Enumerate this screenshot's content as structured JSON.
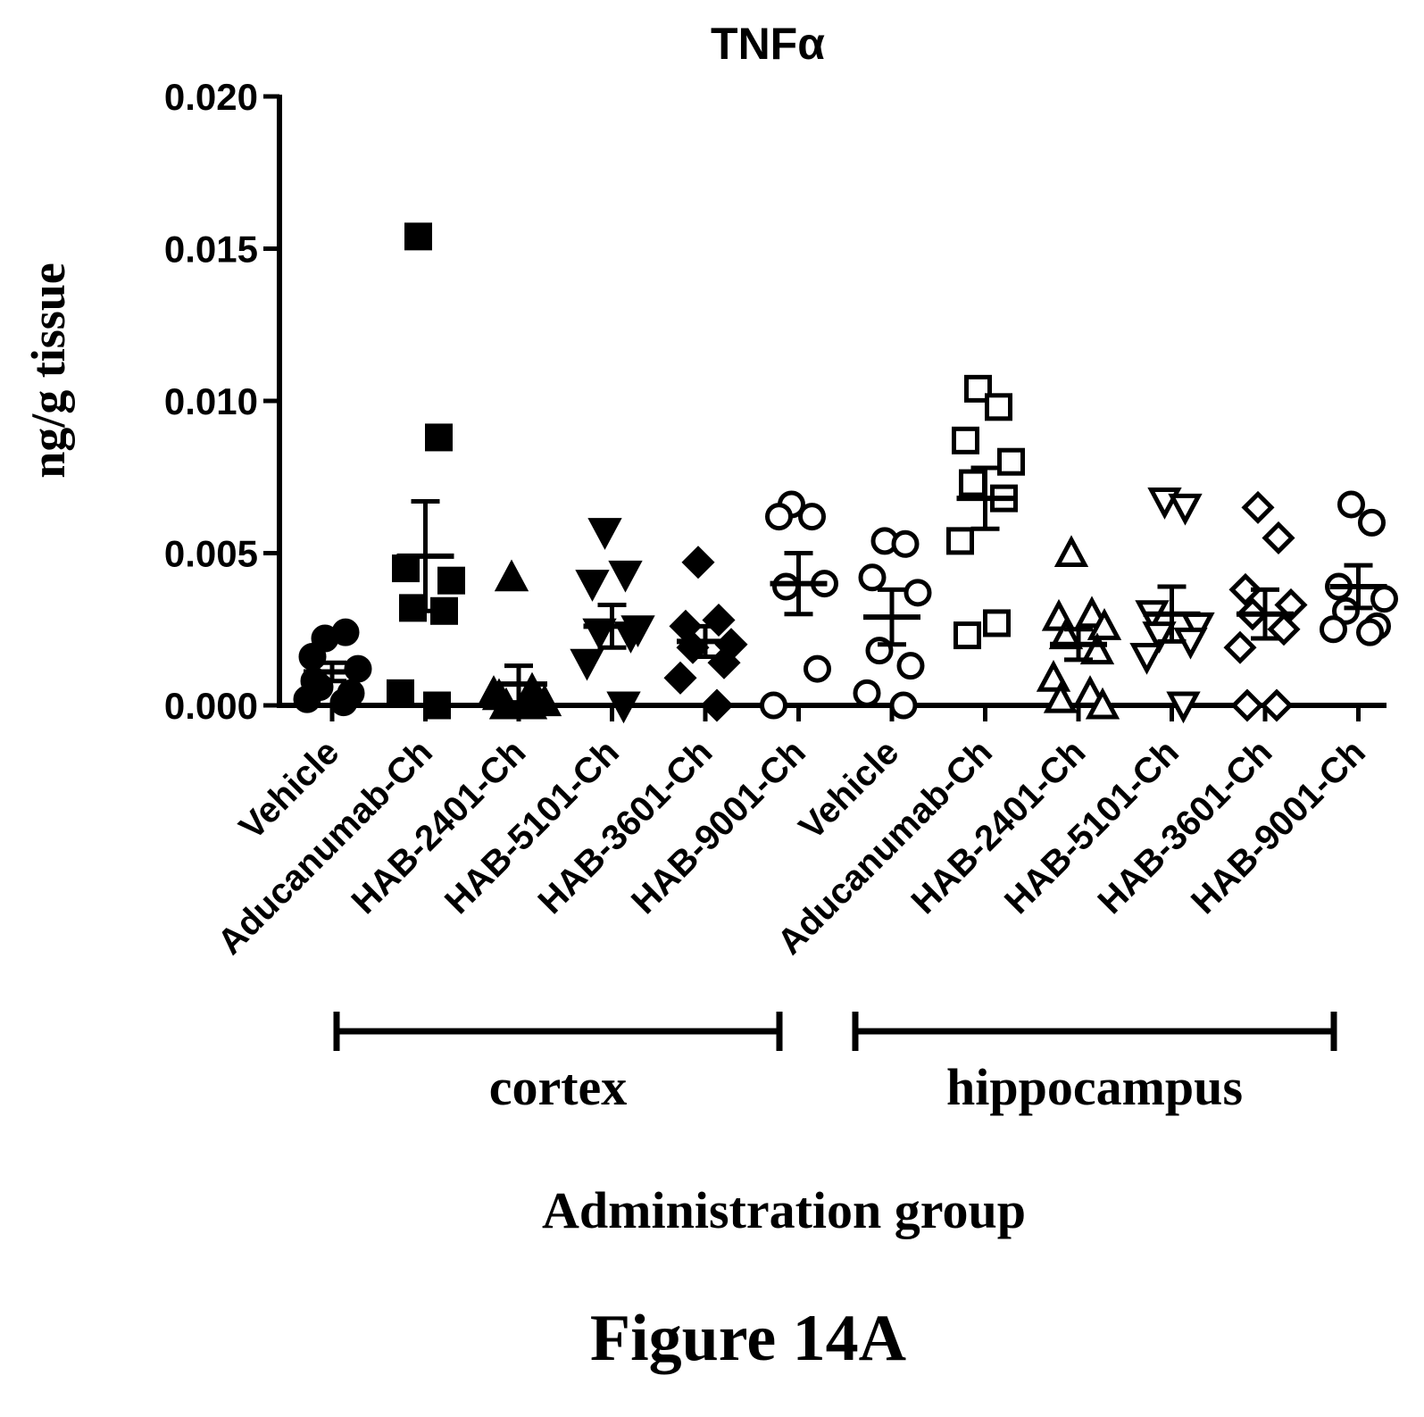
{
  "chart_data": {
    "type": "scatter",
    "title": "TNFα",
    "ylabel": "ng/g tissue",
    "xlabel": "Administration group",
    "ylim": [
      0,
      0.02
    ],
    "yticks": [
      "0.000",
      "0.005",
      "0.010",
      "0.015",
      "0.020"
    ],
    "ytick_values": [
      0,
      0.005,
      0.01,
      0.015,
      0.02
    ],
    "categories": [
      "Vehicle",
      "Aducanumab-Ch",
      "HAB-2401-Ch",
      "HAB-5101-Ch",
      "HAB-3601-Ch",
      "HAB-9001-Ch",
      "Vehicle",
      "Aducanumab-Ch",
      "HAB-2401-Ch",
      "HAB-5101-Ch",
      "HAB-3601-Ch",
      "HAB-9001-Ch"
    ],
    "groups": [
      {
        "label": "cortex",
        "from": 0,
        "to": 5
      },
      {
        "label": "hippocampus",
        "from": 6,
        "to": 11
      }
    ],
    "series": [
      {
        "marker": "circle",
        "filled": true,
        "values": [
          0.0022,
          0.0024,
          0.0016,
          0.0012,
          0.0006,
          0.0004,
          0.0002,
          0.0001,
          0.0008
        ],
        "mean": 0.0011,
        "sem": 0.0003
      },
      {
        "marker": "square",
        "filled": true,
        "values": [
          0.0154,
          0.0088,
          0.0045,
          0.0041,
          0.0032,
          0.0031,
          0.0004,
          0.0
        ],
        "mean": 0.0049,
        "sem": 0.0018
      },
      {
        "marker": "triangle-up",
        "filled": true,
        "values": [
          0.0042,
          0.0005,
          0.0003,
          0.0001,
          0.0,
          0.0002,
          0.0004,
          0.0
        ],
        "mean": 0.0007,
        "sem": 0.0006
      },
      {
        "marker": "triangle-down",
        "filled": true,
        "values": [
          0.0057,
          0.0043,
          0.004,
          0.0025,
          0.0024,
          0.0023,
          0.0014,
          0.0
        ],
        "mean": 0.0026,
        "sem": 0.0007
      },
      {
        "marker": "diamond",
        "filled": true,
        "values": [
          0.0047,
          0.0028,
          0.0026,
          0.002,
          0.0019,
          0.0014,
          0.0009,
          0.0
        ],
        "mean": 0.0021,
        "sem": 0.0005
      },
      {
        "marker": "circle-half",
        "filled": false,
        "values": [
          0.0066,
          0.0062,
          0.0062,
          0.004,
          0.0039,
          0.0012,
          0.0
        ],
        "mean": 0.004,
        "sem": 0.001
      },
      {
        "marker": "hexagon",
        "filled": false,
        "values": [
          0.0054,
          0.0053,
          0.0042,
          0.0037,
          0.0018,
          0.0013,
          0.0004,
          0.0
        ],
        "mean": 0.0029,
        "sem": 0.0009
      },
      {
        "marker": "square",
        "filled": false,
        "values": [
          0.0104,
          0.0098,
          0.0087,
          0.008,
          0.0073,
          0.0068,
          0.0054,
          0.0027,
          0.0023
        ],
        "mean": 0.0068,
        "sem": 0.001
      },
      {
        "marker": "triangle-up",
        "filled": false,
        "values": [
          0.005,
          0.003,
          0.0029,
          0.0026,
          0.0023,
          0.0018,
          0.0009,
          0.0004,
          0.0002,
          0.0
        ],
        "mean": 0.002,
        "sem": 0.0005
      },
      {
        "marker": "triangle-down",
        "filled": false,
        "values": [
          0.0067,
          0.0065,
          0.003,
          0.0026,
          0.0023,
          0.0021,
          0.0016,
          0.0
        ],
        "mean": 0.003,
        "sem": 0.0009
      },
      {
        "marker": "diamond",
        "filled": false,
        "values": [
          0.0065,
          0.0055,
          0.0038,
          0.0033,
          0.003,
          0.0025,
          0.0019,
          0.0,
          0.0
        ],
        "mean": 0.003,
        "sem": 0.0008
      },
      {
        "marker": "circle",
        "filled": false,
        "values": [
          0.0066,
          0.006,
          0.0039,
          0.0035,
          0.0031,
          0.0026,
          0.0025,
          0.0024
        ],
        "mean": 0.0039,
        "sem": 0.0007
      }
    ]
  },
  "caption": "Figure 14A"
}
